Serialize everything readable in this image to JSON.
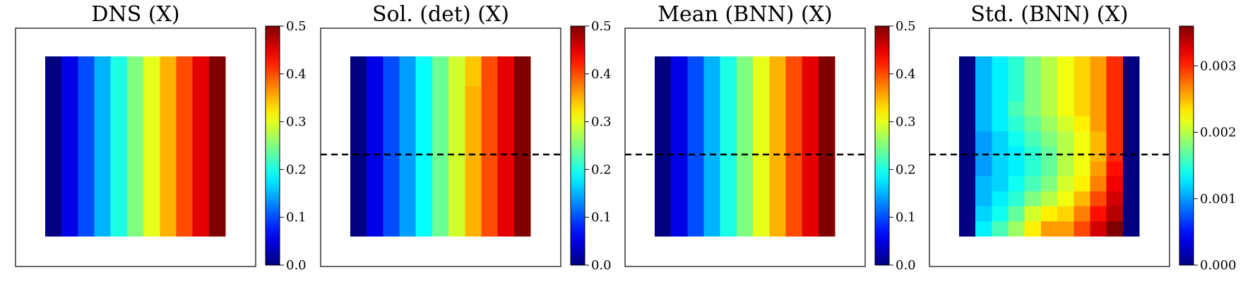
{
  "chart_data": [
    {
      "type": "heatmap",
      "title": "DNS (X)",
      "grid": [
        [
          0.0,
          0.05,
          0.1,
          0.15,
          0.2,
          0.25,
          0.3,
          0.35,
          0.4,
          0.45,
          0.5
        ],
        [
          0.0,
          0.05,
          0.1,
          0.15,
          0.2,
          0.25,
          0.3,
          0.35,
          0.4,
          0.45,
          0.5
        ],
        [
          0.0,
          0.05,
          0.1,
          0.15,
          0.2,
          0.25,
          0.3,
          0.35,
          0.4,
          0.45,
          0.5
        ],
        [
          0.0,
          0.05,
          0.1,
          0.15,
          0.2,
          0.25,
          0.3,
          0.35,
          0.4,
          0.45,
          0.5
        ],
        [
          0.0,
          0.05,
          0.1,
          0.15,
          0.2,
          0.25,
          0.3,
          0.35,
          0.4,
          0.45,
          0.5
        ],
        [
          0.0,
          0.05,
          0.1,
          0.15,
          0.2,
          0.25,
          0.3,
          0.35,
          0.4,
          0.45,
          0.5
        ],
        [
          0.0,
          0.05,
          0.1,
          0.15,
          0.2,
          0.25,
          0.3,
          0.35,
          0.4,
          0.45,
          0.5
        ],
        [
          0.0,
          0.05,
          0.1,
          0.15,
          0.2,
          0.25,
          0.3,
          0.35,
          0.4,
          0.45,
          0.5
        ],
        [
          0.0,
          0.05,
          0.1,
          0.15,
          0.2,
          0.25,
          0.3,
          0.35,
          0.4,
          0.45,
          0.5
        ],
        [
          0.0,
          0.05,
          0.1,
          0.15,
          0.2,
          0.25,
          0.3,
          0.35,
          0.4,
          0.45,
          0.5
        ],
        [
          0.0,
          0.05,
          0.1,
          0.15,
          0.2,
          0.25,
          0.3,
          0.35,
          0.4,
          0.45,
          0.5
        ],
        [
          0.0,
          0.05,
          0.1,
          0.15,
          0.2,
          0.25,
          0.3,
          0.35,
          0.4,
          0.45,
          0.5
        ]
      ],
      "vmin": 0.0,
      "vmax": 0.5,
      "colorbar_ticks": [
        "0.0",
        "0.1",
        "0.2",
        "0.3",
        "0.4",
        "0.5"
      ],
      "colorbar_tick_values": [
        0.0,
        0.1,
        0.2,
        0.3,
        0.4,
        0.5
      ],
      "dashed_line_y": null,
      "colormap": "jet"
    },
    {
      "type": "heatmap",
      "title": "Sol. (det) (X)",
      "grid": [
        [
          0.0,
          0.05,
          0.1,
          0.14,
          0.19,
          0.24,
          0.29,
          0.34,
          0.4,
          0.45,
          0.5
        ],
        [
          0.0,
          0.05,
          0.1,
          0.14,
          0.19,
          0.24,
          0.29,
          0.34,
          0.4,
          0.45,
          0.5
        ],
        [
          0.0,
          0.05,
          0.1,
          0.14,
          0.19,
          0.24,
          0.29,
          0.35,
          0.4,
          0.45,
          0.5
        ],
        [
          0.0,
          0.05,
          0.1,
          0.14,
          0.19,
          0.24,
          0.29,
          0.35,
          0.4,
          0.45,
          0.5
        ],
        [
          0.0,
          0.05,
          0.1,
          0.14,
          0.19,
          0.24,
          0.29,
          0.35,
          0.4,
          0.45,
          0.5
        ],
        [
          0.0,
          0.05,
          0.1,
          0.14,
          0.19,
          0.24,
          0.29,
          0.35,
          0.4,
          0.45,
          0.5
        ],
        [
          0.0,
          0.05,
          0.1,
          0.14,
          0.19,
          0.24,
          0.29,
          0.35,
          0.4,
          0.45,
          0.5
        ],
        [
          0.0,
          0.05,
          0.1,
          0.14,
          0.19,
          0.24,
          0.29,
          0.35,
          0.4,
          0.45,
          0.5
        ],
        [
          0.0,
          0.05,
          0.1,
          0.14,
          0.19,
          0.24,
          0.29,
          0.35,
          0.4,
          0.45,
          0.5
        ],
        [
          0.0,
          0.05,
          0.1,
          0.14,
          0.19,
          0.24,
          0.29,
          0.35,
          0.4,
          0.45,
          0.5
        ],
        [
          0.0,
          0.05,
          0.1,
          0.14,
          0.19,
          0.24,
          0.29,
          0.35,
          0.4,
          0.45,
          0.5
        ],
        [
          0.0,
          0.05,
          0.1,
          0.14,
          0.19,
          0.24,
          0.29,
          0.35,
          0.4,
          0.45,
          0.5
        ]
      ],
      "vmin": 0.0,
      "vmax": 0.5,
      "colorbar_ticks": [
        "0.0",
        "0.1",
        "0.2",
        "0.3",
        "0.4",
        "0.5"
      ],
      "colorbar_tick_values": [
        0.0,
        0.1,
        0.2,
        0.3,
        0.4,
        0.5
      ],
      "dashed_line_y": 0.53,
      "colormap": "jet"
    },
    {
      "type": "heatmap",
      "title": "Mean (BNN) (X)",
      "grid": [
        [
          0.0,
          0.05,
          0.1,
          0.15,
          0.2,
          0.25,
          0.3,
          0.35,
          0.4,
          0.45,
          0.5
        ],
        [
          0.0,
          0.05,
          0.1,
          0.15,
          0.2,
          0.25,
          0.3,
          0.35,
          0.4,
          0.45,
          0.5
        ],
        [
          0.0,
          0.05,
          0.1,
          0.15,
          0.2,
          0.25,
          0.3,
          0.35,
          0.4,
          0.45,
          0.5
        ],
        [
          0.0,
          0.05,
          0.1,
          0.15,
          0.2,
          0.25,
          0.3,
          0.35,
          0.4,
          0.45,
          0.5
        ],
        [
          0.0,
          0.05,
          0.1,
          0.15,
          0.2,
          0.25,
          0.3,
          0.35,
          0.4,
          0.45,
          0.5
        ],
        [
          0.0,
          0.05,
          0.1,
          0.15,
          0.2,
          0.25,
          0.3,
          0.35,
          0.4,
          0.45,
          0.5
        ],
        [
          0.0,
          0.05,
          0.1,
          0.15,
          0.2,
          0.25,
          0.3,
          0.35,
          0.4,
          0.45,
          0.5
        ],
        [
          0.0,
          0.05,
          0.1,
          0.15,
          0.2,
          0.25,
          0.3,
          0.35,
          0.4,
          0.45,
          0.5
        ],
        [
          0.0,
          0.05,
          0.1,
          0.15,
          0.2,
          0.25,
          0.3,
          0.35,
          0.4,
          0.45,
          0.5
        ],
        [
          0.0,
          0.05,
          0.1,
          0.15,
          0.2,
          0.25,
          0.3,
          0.35,
          0.4,
          0.45,
          0.5
        ],
        [
          0.0,
          0.05,
          0.1,
          0.15,
          0.2,
          0.25,
          0.3,
          0.35,
          0.4,
          0.45,
          0.5
        ],
        [
          0.0,
          0.05,
          0.1,
          0.15,
          0.2,
          0.25,
          0.3,
          0.35,
          0.4,
          0.45,
          0.5
        ]
      ],
      "vmin": 0.0,
      "vmax": 0.5,
      "colorbar_ticks": [
        "0.0",
        "0.1",
        "0.2",
        "0.3",
        "0.4",
        "0.5"
      ],
      "colorbar_tick_values": [
        0.0,
        0.1,
        0.2,
        0.3,
        0.4,
        0.5
      ],
      "dashed_line_y": 0.53,
      "colormap": "jet"
    },
    {
      "type": "heatmap",
      "title": "Std. (BNN) (X)",
      "grid": [
        [
          0.0,
          0.0011,
          0.0013,
          0.0015,
          0.0018,
          0.002,
          0.0022,
          0.0024,
          0.0026,
          0.003,
          0.0
        ],
        [
          0.0,
          0.0011,
          0.0013,
          0.0015,
          0.0018,
          0.002,
          0.0022,
          0.0024,
          0.0026,
          0.003,
          0.0
        ],
        [
          0.0,
          0.0011,
          0.0013,
          0.0015,
          0.0018,
          0.002,
          0.0022,
          0.0024,
          0.0026,
          0.003,
          0.0
        ],
        [
          0.0,
          0.0011,
          0.0013,
          0.0016,
          0.0018,
          0.002,
          0.0022,
          0.0024,
          0.0026,
          0.003,
          0.0
        ],
        [
          0.0,
          0.0011,
          0.0013,
          0.0015,
          0.0017,
          0.0019,
          0.0021,
          0.0023,
          0.0026,
          0.003,
          0.0
        ],
        [
          0.0,
          0.001,
          0.0012,
          0.0014,
          0.0016,
          0.0018,
          0.002,
          0.0022,
          0.0025,
          0.003,
          0.0
        ],
        [
          0.0,
          0.001,
          0.0012,
          0.0013,
          0.0015,
          0.0017,
          0.002,
          0.0022,
          0.0025,
          0.003,
          0.0
        ],
        [
          0.0,
          0.001,
          0.0012,
          0.0013,
          0.0015,
          0.0017,
          0.002,
          0.0022,
          0.0026,
          0.0031,
          0.0
        ],
        [
          0.0,
          0.0011,
          0.0012,
          0.0014,
          0.0016,
          0.0018,
          0.0021,
          0.0023,
          0.0027,
          0.0032,
          0.0
        ],
        [
          0.0,
          0.0011,
          0.0013,
          0.0015,
          0.0018,
          0.002,
          0.0022,
          0.0025,
          0.0029,
          0.0033,
          0.0
        ],
        [
          0.0,
          0.0012,
          0.0014,
          0.0017,
          0.0021,
          0.0023,
          0.0024,
          0.0027,
          0.0031,
          0.0034,
          0.0
        ],
        [
          0.0,
          0.0013,
          0.0016,
          0.0019,
          0.0023,
          0.0026,
          0.0026,
          0.0029,
          0.0033,
          0.0036,
          0.0
        ]
      ],
      "vmin": 0.0,
      "vmax": 0.0036,
      "colorbar_ticks": [
        "0.000",
        "0.001",
        "0.002",
        "0.003"
      ],
      "colorbar_tick_values": [
        0.0,
        0.001,
        0.002,
        0.003
      ],
      "dashed_line_y": 0.53,
      "colormap": "jet"
    }
  ]
}
